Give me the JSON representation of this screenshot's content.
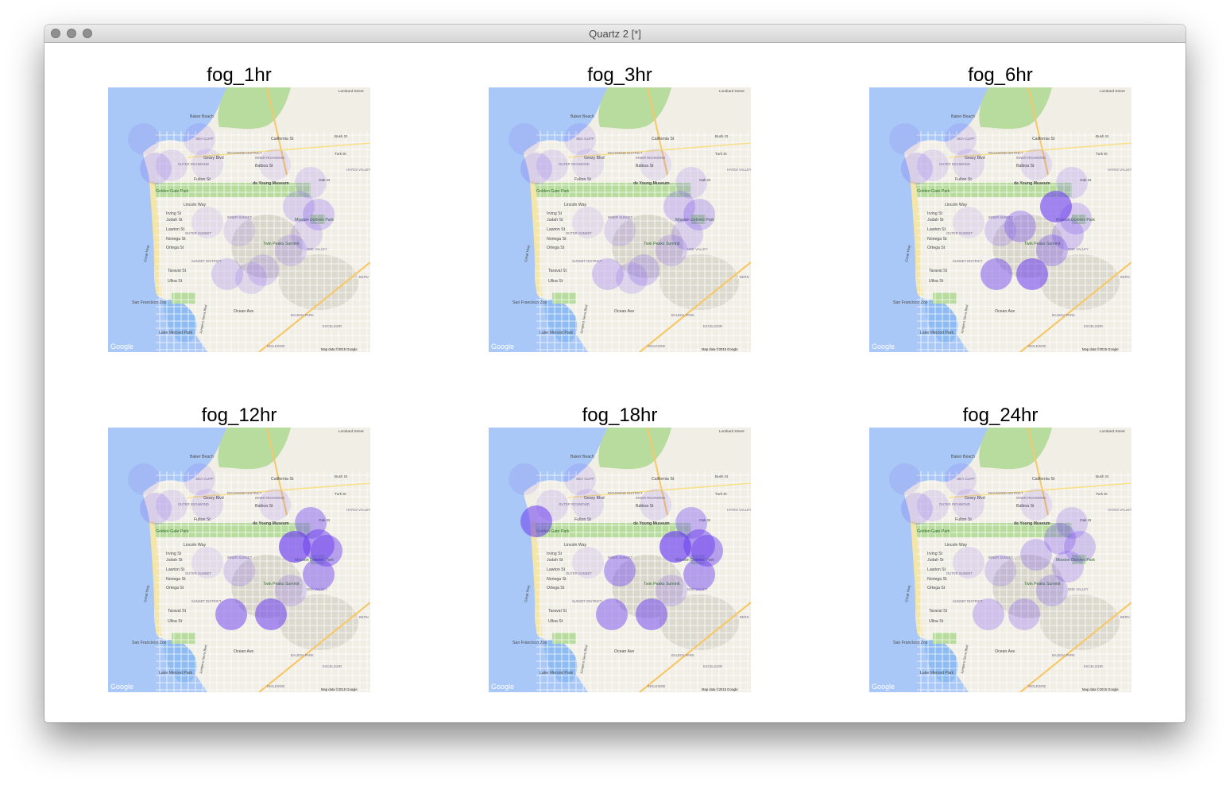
{
  "window": {
    "title": "Quartz 2 [*]"
  },
  "panels": [
    {
      "title": "fog_1hr"
    },
    {
      "title": "fog_3hr"
    },
    {
      "title": "fog_6hr"
    },
    {
      "title": "fog_12hr"
    },
    {
      "title": "fog_18hr"
    },
    {
      "title": "fog_24hr"
    }
  ],
  "map_labels": {
    "lombard": "Lombard Street",
    "baker_beach": "Baker Beach",
    "sea_cliff": "SEA CLIFF",
    "california": "California St",
    "geary": "Geary Blvd",
    "richmond": "RICHMOND DISTRICT",
    "outer_richmond": "OUTER RICHMOND",
    "inner_richmond": "INNER RICHMOND",
    "balboa": "Balboa St",
    "fulton": "Fulton St",
    "gg_park": "Golden Gate Park",
    "de_young": "de Young Museum",
    "lincoln": "Lincoln Way",
    "irving": "Irving St",
    "judah": "Judah St",
    "inner_sunset": "INNER SUNSET",
    "lawton": "Lawton St",
    "outer_sunset": "OUTER SUNSET",
    "noriega": "Noriega St",
    "ortega": "Ortega St",
    "sunset_district": "SUNSET DISTRICT",
    "twin_peaks": "Twin Peaks Summit",
    "mission_dolores": "Mission Dolores Park",
    "noe_valley": "NOE VALLEY",
    "taraval": "Taraval St",
    "ulloa": "Ulloa St",
    "great_hwy": "Great Hwy",
    "sf_zoo": "San Francisco Zoo",
    "ocean_ave": "Ocean Ave",
    "lake_merced": "Lake Merced Park",
    "excelsior": "EXCELSIOR",
    "ingleside": "INGLESIDE",
    "balboa_park": "BALBOA PARK",
    "turk": "Turk St",
    "oak": "Oak St",
    "hayes_valley": "HAYES VALLEY",
    "bush": "Bush St",
    "bernal": "BERN",
    "junipero": "Junipero Serra Blvd",
    "google": "Google",
    "map_data": "Map data ©2015 Google"
  },
  "colors": {
    "fog": "#6a3cf0",
    "water": "#a9c8f7",
    "land": "#f1eee6",
    "park": "#b7dc9e"
  }
}
